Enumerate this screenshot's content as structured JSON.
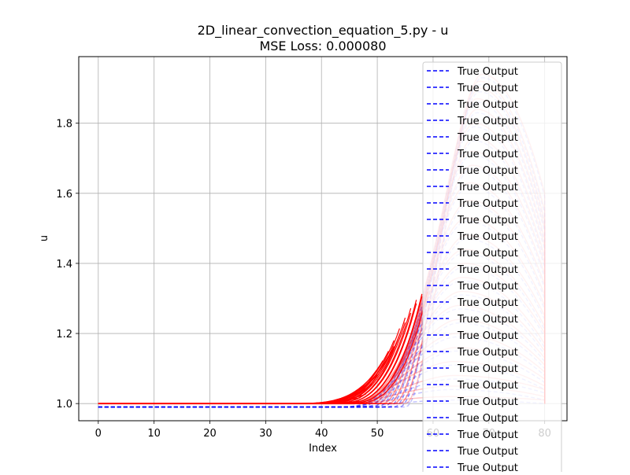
{
  "chart_data": {
    "type": "line",
    "title": "2D_linear_convection_equation_5.py - u",
    "subtitle": "MSE Loss: 0.000080",
    "xlabel": "Index",
    "ylabel": "u",
    "xlim": [
      -3.5,
      84
    ],
    "ylim": [
      0.951,
      1.99
    ],
    "xticks": [
      0,
      10,
      20,
      30,
      40,
      50,
      60,
      70,
      80
    ],
    "yticks": [
      1.0,
      1.2,
      1.4,
      1.6,
      1.8
    ],
    "xtick_labels": [
      "0",
      "10",
      "20",
      "30",
      "40",
      "50",
      "60",
      "70",
      "80"
    ],
    "ytick_labels": [
      "1.0",
      "1.2",
      "1.4",
      "1.6",
      "1.8"
    ],
    "grid": true,
    "legend_placement": "upper-right",
    "legend_entries": [
      "True Output",
      "True Output",
      "True Output",
      "True Output",
      "True Output",
      "True Output",
      "True Output",
      "True Output",
      "True Output",
      "True Output",
      "True Output",
      "True Output",
      "True Output",
      "True Output",
      "True Output",
      "True Output",
      "True Output",
      "True Output",
      "True Output",
      "True Output",
      "True Output",
      "True Output",
      "True Output",
      "True Output",
      "True Output"
    ],
    "x_start": 0,
    "x_end": 80,
    "baseline": 1.0,
    "series_style": {
      "predicted": {
        "color": "#ff0000",
        "linestyle": "solid",
        "alpha": 0.25
      },
      "true": {
        "color": "#0000ff",
        "linestyle": "dashed",
        "alpha": 0.25
      }
    },
    "pulses": [
      {
        "peak": 1.94,
        "start": 55,
        "end": 80,
        "edge": 1.6
      },
      {
        "peak": 1.92,
        "start": 54,
        "end": 80,
        "edge": 1.55
      },
      {
        "peak": 1.9,
        "start": 54,
        "end": 80,
        "edge": 1.52
      },
      {
        "peak": 1.87,
        "start": 53,
        "end": 80,
        "edge": 1.5
      },
      {
        "peak": 1.84,
        "start": 53,
        "end": 80,
        "edge": 1.47
      },
      {
        "peak": 1.8,
        "start": 52,
        "end": 80,
        "edge": 1.45
      },
      {
        "peak": 1.76,
        "start": 52,
        "end": 80,
        "edge": 1.42
      },
      {
        "peak": 1.72,
        "start": 51,
        "end": 80,
        "edge": 1.4
      },
      {
        "peak": 1.68,
        "start": 51,
        "end": 80,
        "edge": 1.37
      },
      {
        "peak": 1.63,
        "start": 50,
        "end": 80,
        "edge": 1.34
      },
      {
        "peak": 1.58,
        "start": 50,
        "end": 80,
        "edge": 1.31
      },
      {
        "peak": 1.53,
        "start": 49,
        "end": 80,
        "edge": 1.28
      },
      {
        "peak": 1.48,
        "start": 49,
        "end": 80,
        "edge": 1.25
      },
      {
        "peak": 1.44,
        "start": 48,
        "end": 80,
        "edge": 1.22
      },
      {
        "peak": 1.4,
        "start": 48,
        "end": 80,
        "edge": 1.2
      },
      {
        "peak": 1.36,
        "start": 47,
        "end": 80,
        "edge": 1.17
      },
      {
        "peak": 1.32,
        "start": 47,
        "end": 80,
        "edge": 1.15
      },
      {
        "peak": 1.28,
        "start": 46,
        "end": 80,
        "edge": 1.13
      },
      {
        "peak": 1.24,
        "start": 46,
        "end": 80,
        "edge": 1.11
      },
      {
        "peak": 1.2,
        "start": 45,
        "end": 80,
        "edge": 1.09
      },
      {
        "peak": 1.16,
        "start": 45,
        "end": 80,
        "edge": 1.07
      },
      {
        "peak": 1.12,
        "start": 44,
        "end": 80,
        "edge": 1.05
      },
      {
        "peak": 1.08,
        "start": 44,
        "end": 80,
        "edge": 1.04
      },
      {
        "peak": 1.05,
        "start": 43,
        "end": 80,
        "edge": 1.02
      },
      {
        "peak": 1.02,
        "start": 43,
        "end": 80,
        "edge": 1.01
      }
    ]
  }
}
